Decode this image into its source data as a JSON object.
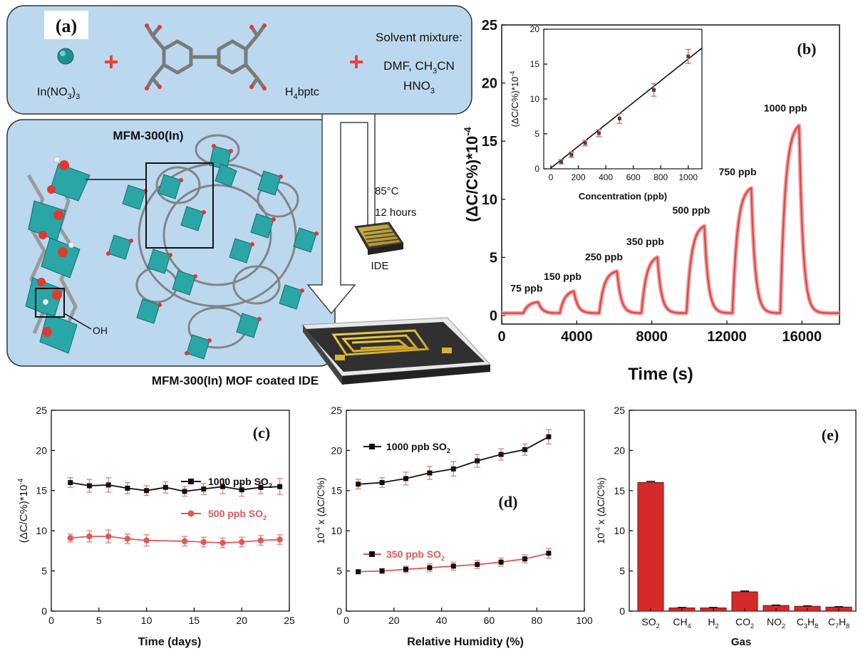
{
  "panel_a": {
    "label": "(a)",
    "reactant_metal": "In(NO3)3",
    "reactant_metal_main": "In(NO",
    "reactant_metal_sub": "3",
    "reactant_metal_close": ")",
    "reactant_metal_sub2": "3",
    "plus": "+",
    "ligand_main": "H",
    "ligand_sub": "4",
    "ligand_rest": "bptc",
    "solvent_title": "Solvent mixture:",
    "solvent_line1": "DMF, CH",
    "solvent_line1_sub": "3",
    "solvent_line1_rest": "CN",
    "solvent_line2": "HNO",
    "solvent_line2_sub": "3",
    "mof_title": "MFM-300(In)",
    "oh_label": "OH",
    "condition_temp": "85°C",
    "condition_time": "12 hours",
    "ide_label": "IDE",
    "coated_label": "MFM-300(In) MOF coated IDE",
    "colors": {
      "box_fill": "#bcd8ee",
      "metal": "#2aa6a6",
      "oxygen": "#e03a2e",
      "carbon": "#8a8a8a",
      "plus": "#e8423a",
      "electrode": "#d9b331"
    }
  },
  "panel_b": {
    "label": "(b)",
    "x_title": "Time (s)",
    "y_title": "(ΔC/C%)*10",
    "y_title_sup": "-4",
    "x_ticks": [
      "0",
      "4000",
      "8000",
      "12000",
      "16000"
    ],
    "y_ticks": [
      "0",
      "5",
      "10",
      "15",
      "20",
      "25"
    ],
    "pulse_labels": [
      "75 ppb",
      "150 ppb",
      "250 ppb",
      "350 ppb",
      "500 ppb",
      "750 ppb",
      "1000 ppb"
    ],
    "inset": {
      "x_title": "Concentration (ppb)",
      "y_title": "(ΔC/C%)*10",
      "y_title_sup": "-4",
      "x_ticks": [
        "0",
        "200",
        "400",
        "600",
        "800",
        "1000"
      ],
      "y_ticks": [
        "0",
        "5",
        "10",
        "15",
        "20"
      ]
    }
  },
  "panel_c": {
    "label": "(c)",
    "x_title": "Time (days)",
    "y_title": "(ΔC/C%)*10",
    "y_title_sup": "-4",
    "x_ticks": [
      "0",
      "5",
      "10",
      "15",
      "20",
      "25"
    ],
    "y_ticks": [
      "0",
      "5",
      "10",
      "15",
      "20",
      "25"
    ],
    "legend1_main": "1000 ppb  SO",
    "legend1_sub": "2",
    "legend2_main": "500 ppb SO",
    "legend2_sub": "2"
  },
  "panel_d": {
    "label": "(d)",
    "x_title": "Relative Humidity (%)",
    "y_title": "10",
    "y_title_sup": "-4",
    "y_title_rest": " x (ΔC/C%)",
    "x_ticks": [
      "0",
      "20",
      "40",
      "60",
      "80",
      "100"
    ],
    "y_ticks": [
      "0",
      "5",
      "10",
      "15",
      "20",
      "25"
    ],
    "legend1_main": "1000 ppb SO",
    "legend1_sub": "2",
    "legend2_main": "350 ppb SO",
    "legend2_sub": "2"
  },
  "panel_e": {
    "label": "(e)",
    "x_title": "Gas",
    "y_title": "10",
    "y_title_sup": "-4",
    "y_title_rest": " x (ΔC/C%)",
    "y_ticks": [
      "0",
      "5",
      "10",
      "15",
      "20",
      "25"
    ]
  },
  "chart_data": [
    {
      "id": "b",
      "type": "line",
      "xlabel": "Time (s)",
      "ylabel": "(ΔC/C%)*10-4",
      "xlim": [
        0,
        18000
      ],
      "ylim": [
        0,
        25
      ],
      "color": "#e04848",
      "pulses": [
        {
          "label": "75 ppb",
          "start": 1150,
          "end": 1950,
          "amp": 1.0
        },
        {
          "label": "150 ppb",
          "start": 3100,
          "end": 3850,
          "amp": 2.0
        },
        {
          "label": "250 ppb",
          "start": 5200,
          "end": 6150,
          "amp": 3.7
        },
        {
          "label": "350 ppb",
          "start": 7450,
          "end": 8300,
          "amp": 5.0
        },
        {
          "label": "500 ppb",
          "start": 9850,
          "end": 10800,
          "amp": 7.7
        },
        {
          "label": "750 ppb",
          "start": 12300,
          "end": 13300,
          "amp": 11.0
        },
        {
          "label": "1000 ppb",
          "start": 14850,
          "end": 15850,
          "amp": 16.5
        }
      ]
    },
    {
      "id": "b-inset",
      "type": "scatter",
      "xlabel": "Concentration (ppb)",
      "ylabel": "(ΔC/C%)*10-4",
      "xlim": [
        0,
        1100
      ],
      "ylim": [
        0,
        20
      ],
      "x": [
        75,
        150,
        250,
        350,
        500,
        750,
        1000
      ],
      "y": [
        1.0,
        2.0,
        3.7,
        5.1,
        7.2,
        11.3,
        16.1
      ],
      "err": [
        0.3,
        0.4,
        0.4,
        0.5,
        0.7,
        0.9,
        1.0
      ],
      "fit": [
        [
          0,
          0.1
        ],
        [
          1100,
          17.3
        ]
      ]
    },
    {
      "id": "c",
      "type": "line",
      "xlabel": "Time (days)",
      "ylabel": "(ΔC/C%)*10-4",
      "xlim": [
        0,
        25
      ],
      "ylim": [
        0,
        25
      ],
      "series": [
        {
          "name": "1000 ppb SO2",
          "color": "#111111",
          "marker": "square",
          "x": [
            2,
            4,
            6,
            8,
            10,
            12,
            14,
            16,
            18,
            20,
            22,
            24
          ],
          "y": [
            16.0,
            15.6,
            15.7,
            15.3,
            15.0,
            15.4,
            14.9,
            15.2,
            15.5,
            15.1,
            15.4,
            15.5
          ],
          "err": [
            0.6,
            0.8,
            0.9,
            0.7,
            0.6,
            0.7,
            0.6,
            0.7,
            0.9,
            0.8,
            0.8,
            1.0
          ]
        },
        {
          "name": "500 ppb SO2",
          "color": "#e05858",
          "marker": "circle",
          "x": [
            2,
            4,
            6,
            8,
            10,
            14,
            16,
            18,
            20,
            22,
            24
          ],
          "y": [
            9.1,
            9.3,
            9.3,
            9.0,
            8.8,
            8.7,
            8.6,
            8.5,
            8.6,
            8.8,
            8.9
          ],
          "err": [
            0.5,
            0.7,
            0.8,
            0.6,
            0.7,
            0.6,
            0.6,
            0.6,
            0.6,
            0.6,
            0.6
          ]
        }
      ]
    },
    {
      "id": "d",
      "type": "line",
      "xlabel": "Relative Humidity (%)",
      "ylabel": "10-4 x (ΔC/C%)",
      "xlim": [
        0,
        100
      ],
      "ylim": [
        0,
        25
      ],
      "series": [
        {
          "name": "1000 ppb SO2",
          "color": "#111111",
          "marker": "square",
          "x": [
            5,
            15,
            25,
            35,
            45,
            55,
            65,
            75,
            85
          ],
          "y": [
            15.8,
            16.0,
            16.5,
            17.2,
            17.7,
            18.7,
            19.5,
            20.1,
            21.7
          ],
          "err": [
            0.6,
            0.6,
            0.8,
            0.8,
            0.9,
            0.8,
            0.7,
            0.7,
            0.9
          ]
        },
        {
          "name": "350 ppb SO2",
          "color": "#e05858",
          "marker": "square",
          "x": [
            5,
            15,
            25,
            35,
            45,
            55,
            65,
            75,
            85
          ],
          "y": [
            4.9,
            5.0,
            5.2,
            5.4,
            5.6,
            5.8,
            6.1,
            6.5,
            7.2
          ],
          "err": [
            0.2,
            0.3,
            0.4,
            0.5,
            0.5,
            0.5,
            0.5,
            0.5,
            0.6
          ]
        }
      ]
    },
    {
      "id": "e",
      "type": "bar",
      "xlabel": "Gas",
      "ylabel": "10-4 x (ΔC/C%)",
      "ylim": [
        0,
        25
      ],
      "color": "#d42a2a",
      "categories": [
        {
          "main": "SO",
          "sub": "2"
        },
        {
          "main": "CH",
          "sub": "4"
        },
        {
          "main": "H",
          "sub": "2"
        },
        {
          "main": "CO",
          "sub": "2"
        },
        {
          "main": "NO",
          "sub": "2"
        },
        {
          "main": "C",
          "sub": "3",
          "main2": "H",
          "sub2": "8"
        },
        {
          "main": "C",
          "sub": "7",
          "main2": "H",
          "sub2": "8"
        }
      ],
      "values": [
        16.0,
        0.4,
        0.4,
        2.4,
        0.7,
        0.6,
        0.5
      ],
      "err": [
        0.15,
        0.05,
        0.05,
        0.1,
        0.05,
        0.05,
        0.05
      ]
    }
  ]
}
